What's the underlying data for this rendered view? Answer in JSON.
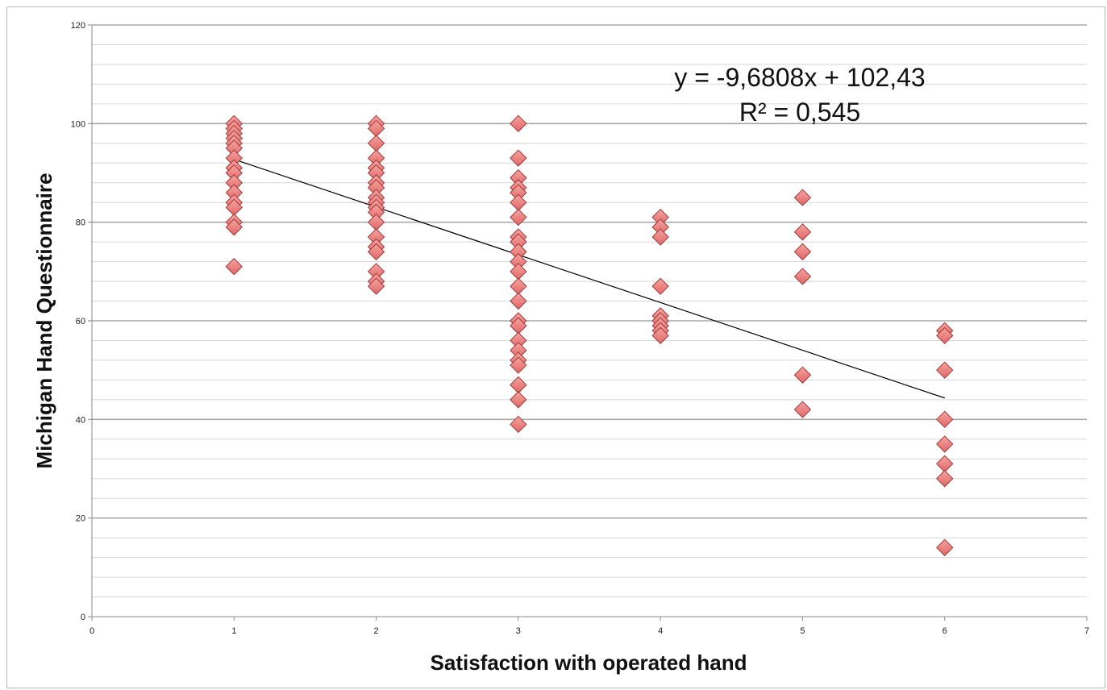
{
  "chart_data": {
    "type": "scatter",
    "title": "",
    "xlabel": "Satisfaction with operated hand",
    "ylabel": "Michigan Hand Questionnaire",
    "xlim": [
      0,
      7
    ],
    "ylim": [
      0,
      120
    ],
    "xticks": [
      0,
      1,
      2,
      3,
      4,
      5,
      6,
      7
    ],
    "yticks": [
      0,
      20,
      40,
      60,
      80,
      100,
      120
    ],
    "grid": {
      "major": true,
      "minor": true
    },
    "legend": "none",
    "marker": {
      "shape": "diamond",
      "color": "#e06666",
      "edge": "#a33a3a"
    },
    "points": [
      {
        "x": 1,
        "y": 100
      },
      {
        "x": 1,
        "y": 99
      },
      {
        "x": 1,
        "y": 98
      },
      {
        "x": 1,
        "y": 97
      },
      {
        "x": 1,
        "y": 96
      },
      {
        "x": 1,
        "y": 95
      },
      {
        "x": 1,
        "y": 93
      },
      {
        "x": 1,
        "y": 91
      },
      {
        "x": 1,
        "y": 90
      },
      {
        "x": 1,
        "y": 88
      },
      {
        "x": 1,
        "y": 86
      },
      {
        "x": 1,
        "y": 84
      },
      {
        "x": 1,
        "y": 83
      },
      {
        "x": 1,
        "y": 80
      },
      {
        "x": 1,
        "y": 79
      },
      {
        "x": 1,
        "y": 71
      },
      {
        "x": 2,
        "y": 100
      },
      {
        "x": 2,
        "y": 99
      },
      {
        "x": 2,
        "y": 96
      },
      {
        "x": 2,
        "y": 93
      },
      {
        "x": 2,
        "y": 91
      },
      {
        "x": 2,
        "y": 90
      },
      {
        "x": 2,
        "y": 88
      },
      {
        "x": 2,
        "y": 87
      },
      {
        "x": 2,
        "y": 85
      },
      {
        "x": 2,
        "y": 84
      },
      {
        "x": 2,
        "y": 83
      },
      {
        "x": 2,
        "y": 82
      },
      {
        "x": 2,
        "y": 80
      },
      {
        "x": 2,
        "y": 77
      },
      {
        "x": 2,
        "y": 75
      },
      {
        "x": 2,
        "y": 74
      },
      {
        "x": 2,
        "y": 70
      },
      {
        "x": 2,
        "y": 68
      },
      {
        "x": 2,
        "y": 67
      },
      {
        "x": 3,
        "y": 100
      },
      {
        "x": 3,
        "y": 93
      },
      {
        "x": 3,
        "y": 89
      },
      {
        "x": 3,
        "y": 87
      },
      {
        "x": 3,
        "y": 86
      },
      {
        "x": 3,
        "y": 84
      },
      {
        "x": 3,
        "y": 81
      },
      {
        "x": 3,
        "y": 77
      },
      {
        "x": 3,
        "y": 76
      },
      {
        "x": 3,
        "y": 74
      },
      {
        "x": 3,
        "y": 72
      },
      {
        "x": 3,
        "y": 70
      },
      {
        "x": 3,
        "y": 67
      },
      {
        "x": 3,
        "y": 64
      },
      {
        "x": 3,
        "y": 60
      },
      {
        "x": 3,
        "y": 59
      },
      {
        "x": 3,
        "y": 56
      },
      {
        "x": 3,
        "y": 54
      },
      {
        "x": 3,
        "y": 52
      },
      {
        "x": 3,
        "y": 51
      },
      {
        "x": 3,
        "y": 47
      },
      {
        "x": 3,
        "y": 44
      },
      {
        "x": 3,
        "y": 39
      },
      {
        "x": 4,
        "y": 81
      },
      {
        "x": 4,
        "y": 79
      },
      {
        "x": 4,
        "y": 77
      },
      {
        "x": 4,
        "y": 67
      },
      {
        "x": 4,
        "y": 61
      },
      {
        "x": 4,
        "y": 60
      },
      {
        "x": 4,
        "y": 59
      },
      {
        "x": 4,
        "y": 58
      },
      {
        "x": 4,
        "y": 57
      },
      {
        "x": 5,
        "y": 85
      },
      {
        "x": 5,
        "y": 78
      },
      {
        "x": 5,
        "y": 74
      },
      {
        "x": 5,
        "y": 69
      },
      {
        "x": 5,
        "y": 49
      },
      {
        "x": 5,
        "y": 42
      },
      {
        "x": 6,
        "y": 58
      },
      {
        "x": 6,
        "y": 57
      },
      {
        "x": 6,
        "y": 50
      },
      {
        "x": 6,
        "y": 40
      },
      {
        "x": 6,
        "y": 35
      },
      {
        "x": 6,
        "y": 31
      },
      {
        "x": 6,
        "y": 28
      },
      {
        "x": 6,
        "y": 14
      }
    ],
    "trendline": {
      "type": "linear",
      "slope": -9.6808,
      "intercept": 102.43,
      "x_range": [
        1,
        6
      ],
      "equation_label": "y = -9,6808x + 102,43",
      "r2_label": "R² = 0,545"
    }
  }
}
